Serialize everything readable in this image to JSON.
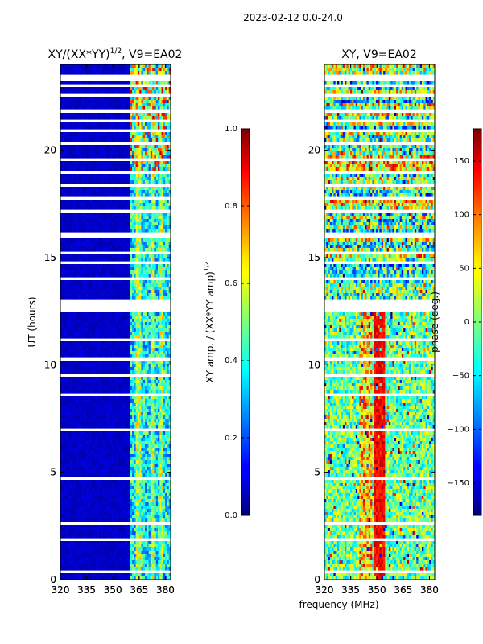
{
  "figure": {
    "suptitle": "2023-02-12 0.0-24.0",
    "xlabel_shared": "frequency (MHz)"
  },
  "chart_data": [
    {
      "type": "heatmap",
      "title_main": "XY/(XX*YY)",
      "title_exp": "1/2",
      "title_tail": ", V9=EA02",
      "ylabel": "UT (hours)",
      "x": [
        320,
        335,
        350,
        365,
        380
      ],
      "xticklabels": [
        "320",
        "335",
        "350",
        "365",
        "380"
      ],
      "xlim": [
        320,
        383
      ],
      "y": [
        0,
        5,
        10,
        15,
        20
      ],
      "yticklabels": [
        "0",
        "5",
        "10",
        "15",
        "20"
      ],
      "ylim": [
        0,
        24
      ],
      "colorbar": {
        "label_main": "XY amp. / (XX*YY amp)",
        "label_exp": "1/2",
        "range": [
          0.0,
          1.0
        ],
        "ticks": [
          0.0,
          0.2,
          0.4,
          0.6,
          0.8,
          1.0
        ],
        "ticklabels": [
          "0.0",
          "0.2",
          "0.4",
          "0.6",
          "0.8",
          "1.0"
        ],
        "colormap": "jet"
      }
    },
    {
      "type": "heatmap",
      "title": "XY, V9=EA02",
      "x": [
        320,
        335,
        350,
        365,
        380
      ],
      "xticklabels": [
        "320",
        "335",
        "350",
        "365",
        "380"
      ],
      "xlim": [
        320,
        383
      ],
      "y": [
        0,
        5,
        10,
        15,
        20
      ],
      "yticklabels": [
        "0",
        "5",
        "10",
        "15",
        "20"
      ],
      "ylim": [
        0,
        24
      ],
      "colorbar": {
        "label": "phase (deg.)",
        "range": [
          -180,
          180
        ],
        "ticks": [
          -150,
          -100,
          -50,
          0,
          50,
          100,
          150
        ],
        "ticklabels": [
          "−150",
          "−100",
          "−50",
          "0",
          "50",
          "100",
          "150"
        ],
        "colormap": "jet"
      }
    }
  ]
}
